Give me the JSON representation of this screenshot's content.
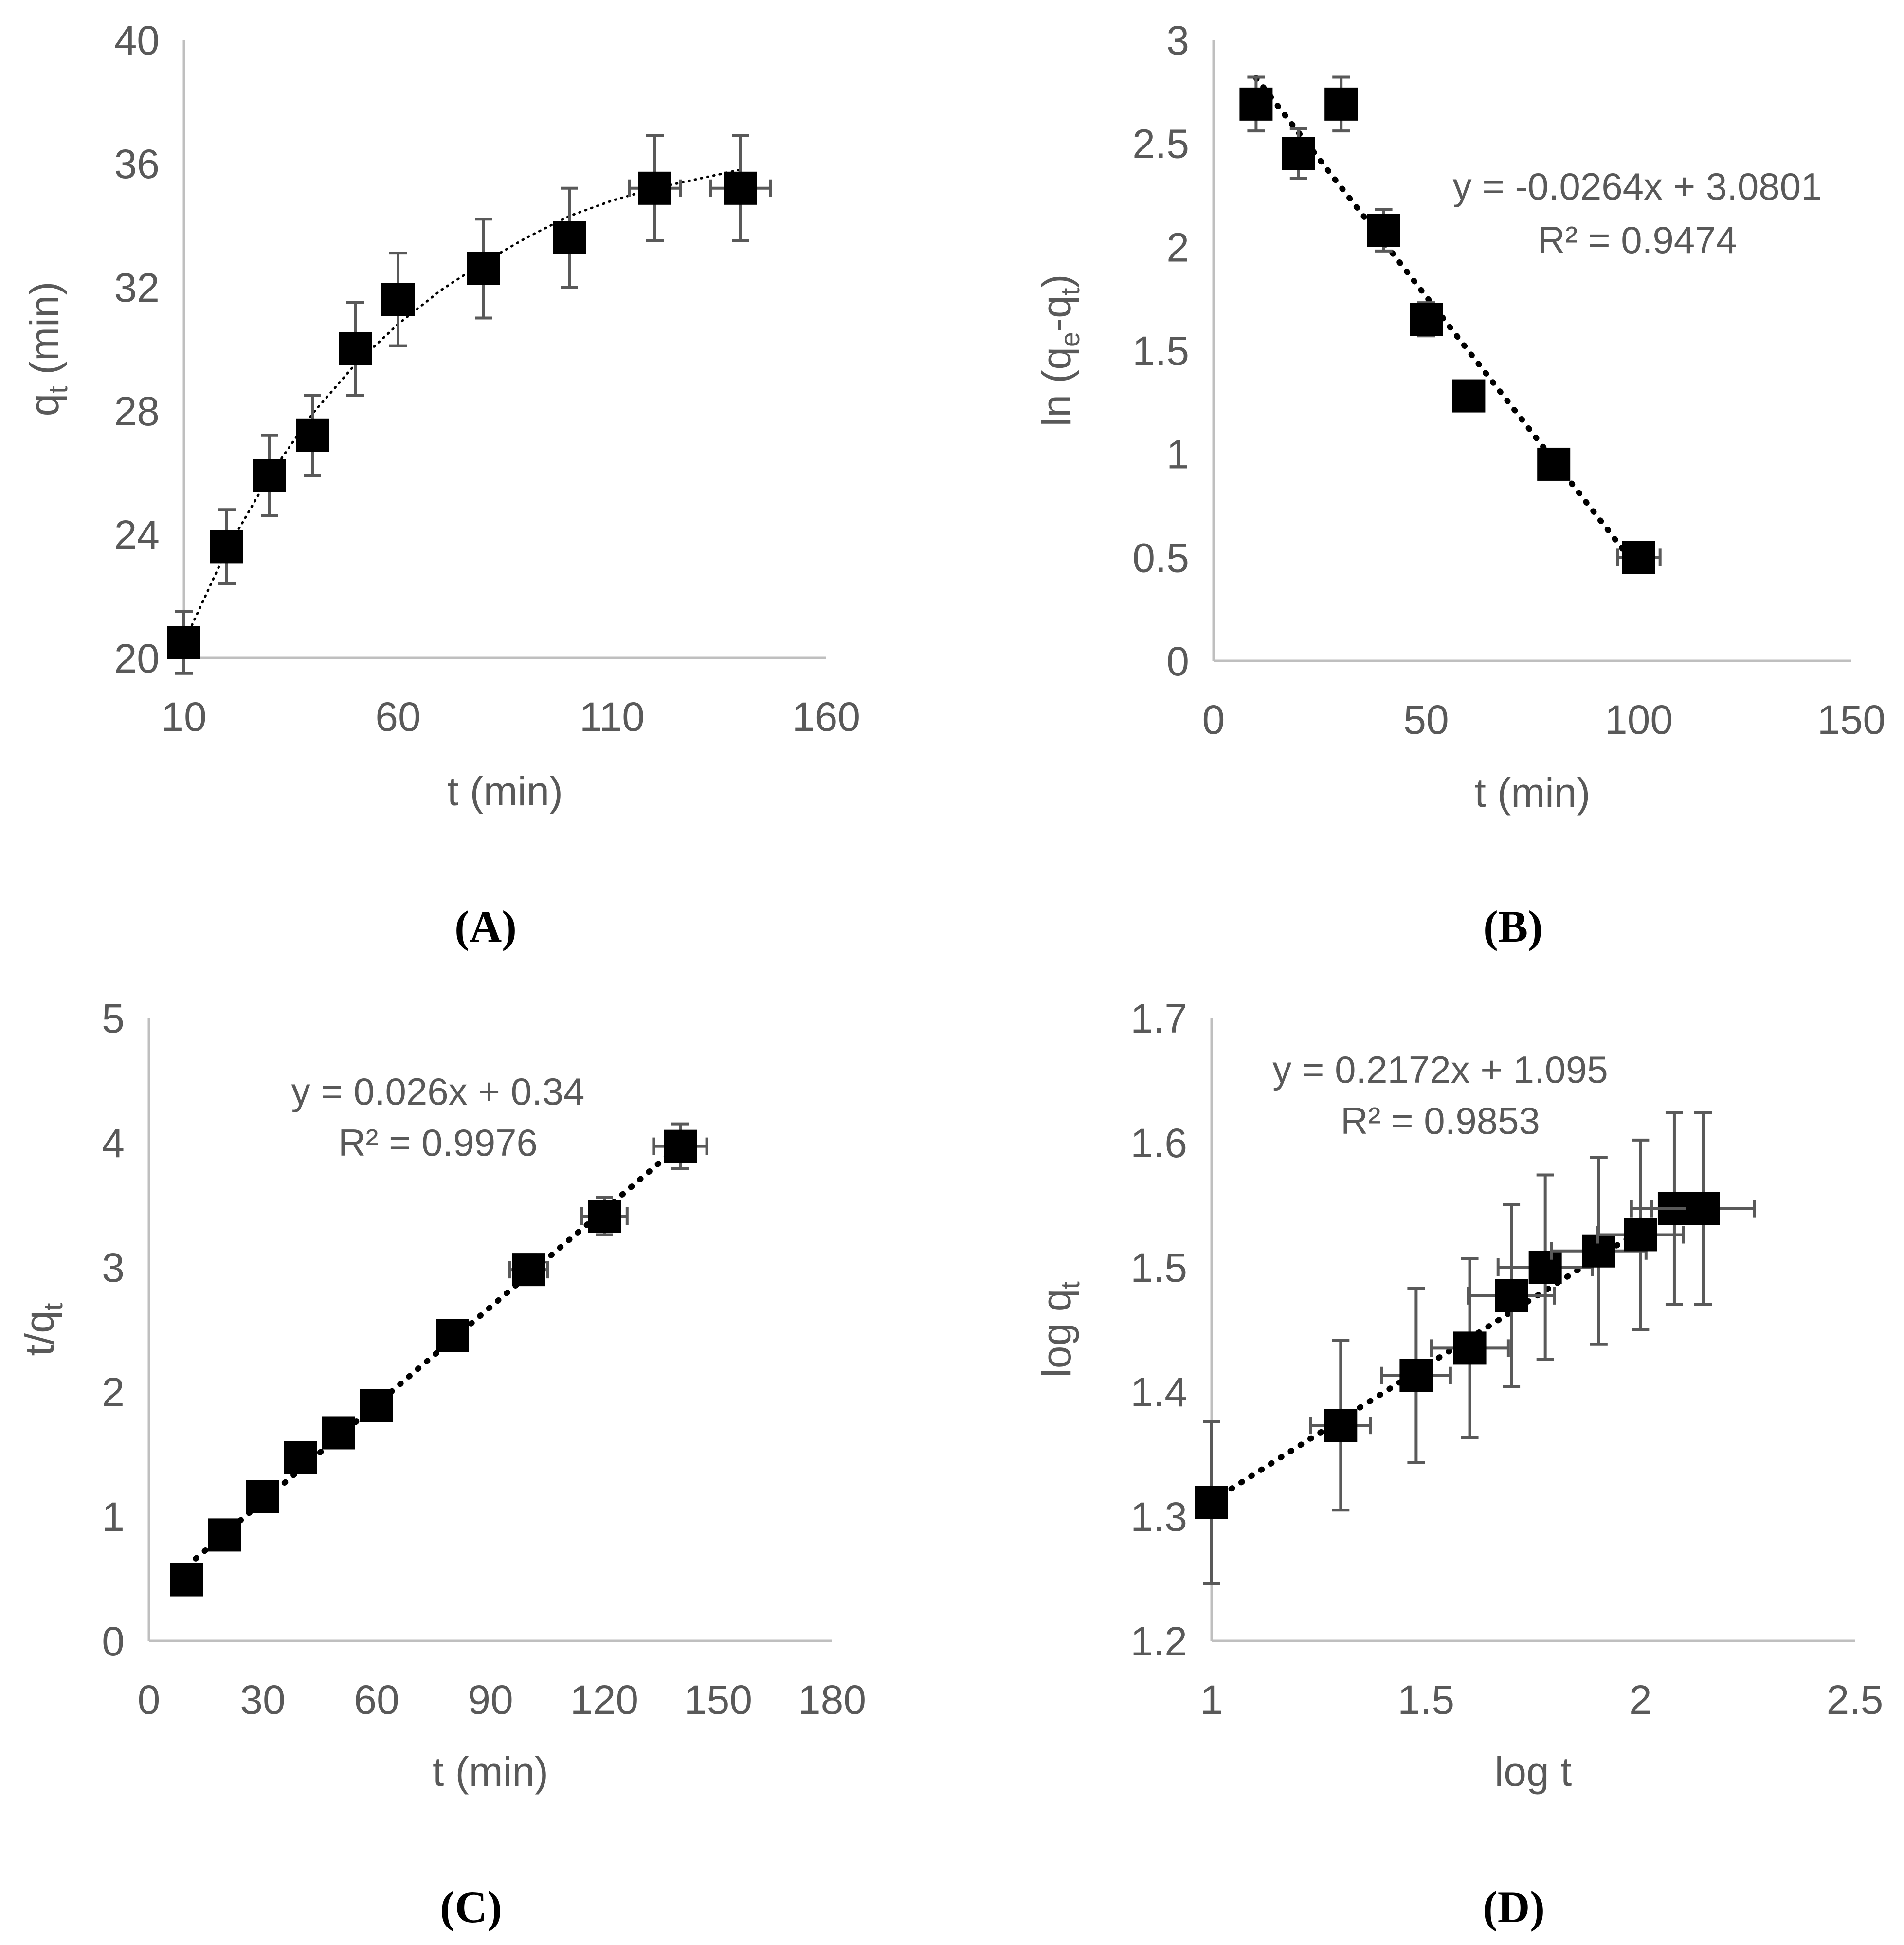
{
  "chart_data": [
    {
      "id": "A",
      "panel_label": "(A)",
      "type": "scatter",
      "xlabel": "t (min)",
      "ylabel_main": "q",
      "ylabel_sub": "t",
      "ylabel_tail": " (min)",
      "xlim": [
        10,
        160
      ],
      "ylim": [
        20,
        40
      ],
      "xticks": [
        10,
        60,
        110,
        160
      ],
      "yticks": [
        20,
        24,
        28,
        32,
        36,
        40
      ],
      "x": [
        10,
        20,
        30,
        40,
        50,
        60,
        80,
        100,
        120,
        140
      ],
      "y": [
        20.5,
        23.6,
        25.9,
        27.2,
        30.0,
        31.6,
        32.6,
        33.6,
        35.2,
        35.2
      ],
      "y_err": [
        1.0,
        1.2,
        1.3,
        1.3,
        1.5,
        1.5,
        1.6,
        1.6,
        1.7,
        1.7
      ],
      "x_err": [
        0,
        0,
        0,
        0,
        0,
        0,
        0,
        3,
        6,
        7
      ],
      "trendline": {
        "kind": "curve",
        "x": [
          10,
          20,
          30,
          40,
          50,
          60,
          70,
          80,
          90,
          100,
          110,
          120,
          130,
          140
        ],
        "y": [
          20.5,
          23.5,
          25.9,
          27.9,
          29.5,
          30.8,
          31.9,
          32.8,
          33.6,
          34.3,
          34.8,
          35.2,
          35.5,
          35.8
        ]
      },
      "equation": "",
      "r2": ""
    },
    {
      "id": "B",
      "panel_label": "(B)",
      "type": "scatter",
      "xlabel": "t (min)",
      "ylabel_main": "ln (q",
      "ylabel_sub": "e",
      "ylabel_mid": "-q",
      "ylabel_sub2": "t",
      "ylabel_tail": ")",
      "xlim": [
        0,
        150
      ],
      "ylim": [
        0,
        3
      ],
      "xticks": [
        0,
        50,
        100,
        150
      ],
      "yticks": [
        0,
        0.5,
        1,
        1.5,
        2,
        2.5,
        3
      ],
      "x": [
        10,
        20,
        30,
        40,
        50,
        60,
        80,
        100
      ],
      "y": [
        2.69,
        2.45,
        2.69,
        2.08,
        1.65,
        1.28,
        0.95,
        0.5
      ],
      "y_err": [
        0.13,
        0.12,
        0.13,
        0.1,
        0.08,
        0,
        0.03,
        0.02
      ],
      "x_err": [
        0,
        0,
        0,
        0,
        3,
        0,
        3,
        5
      ],
      "trendline": {
        "kind": "linear",
        "slope": -0.0264,
        "intercept": 3.0801,
        "x_range": [
          10,
          100
        ]
      },
      "equation": "y = -0.0264x + 3.0801",
      "r2": "R² = 0.9474"
    },
    {
      "id": "C",
      "panel_label": "(C)",
      "type": "scatter",
      "xlabel": "t (min)",
      "ylabel_main": "t/q",
      "ylabel_sub": "t",
      "ylabel_tail": "",
      "xlim": [
        0,
        180
      ],
      "ylim": [
        0,
        5
      ],
      "xticks": [
        0,
        30,
        60,
        90,
        120,
        150,
        180
      ],
      "yticks": [
        0,
        1,
        2,
        3,
        4,
        5
      ],
      "x": [
        10,
        20,
        30,
        40,
        50,
        60,
        80,
        100,
        120,
        140
      ],
      "y": [
        0.49,
        0.85,
        1.16,
        1.47,
        1.67,
        1.89,
        2.45,
        2.98,
        3.41,
        3.97
      ],
      "y_err": [
        0,
        0,
        0,
        0,
        0,
        0,
        0.07,
        0.12,
        0.15,
        0.18
      ],
      "x_err": [
        0,
        0,
        0,
        0,
        0,
        0,
        3,
        5,
        6,
        7
      ],
      "trendline": {
        "kind": "linear",
        "slope": 0.026,
        "intercept": 0.34,
        "x_range": [
          10,
          140
        ]
      },
      "equation": "y = 0.026x + 0.34",
      "r2": "R² = 0.9976"
    },
    {
      "id": "D",
      "panel_label": "(D)",
      "type": "scatter",
      "xlabel": "log t",
      "ylabel_main": "log q",
      "ylabel_sub": "t",
      "ylabel_tail": "",
      "xlim": [
        1,
        2.5
      ],
      "ylim": [
        1.2,
        1.7
      ],
      "xticks": [
        1,
        1.5,
        2,
        2.5
      ],
      "yticks": [
        1.2,
        1.3,
        1.4,
        1.5,
        1.6,
        1.7
      ],
      "x": [
        1.0,
        1.301,
        1.477,
        1.602,
        1.699,
        1.778,
        1.903,
        2.0,
        2.079,
        2.146
      ],
      "y": [
        1.311,
        1.373,
        1.413,
        1.435,
        1.477,
        1.5,
        1.513,
        1.526,
        1.547,
        1.547
      ],
      "y_err": [
        0.065,
        0.068,
        0.07,
        0.072,
        0.073,
        0.074,
        0.075,
        0.076,
        0.077,
        0.077
      ],
      "x_err": [
        0.02,
        0.07,
        0.08,
        0.09,
        0.1,
        0.11,
        0.11,
        0.1,
        0.1,
        0.12
      ],
      "trendline": {
        "kind": "linear",
        "slope": 0.2172,
        "intercept": 1.095,
        "x_range": [
          1.0,
          2.0
        ]
      },
      "equation": "y = 0.2172x + 1.095",
      "r2": "R² = 0.9853"
    }
  ]
}
